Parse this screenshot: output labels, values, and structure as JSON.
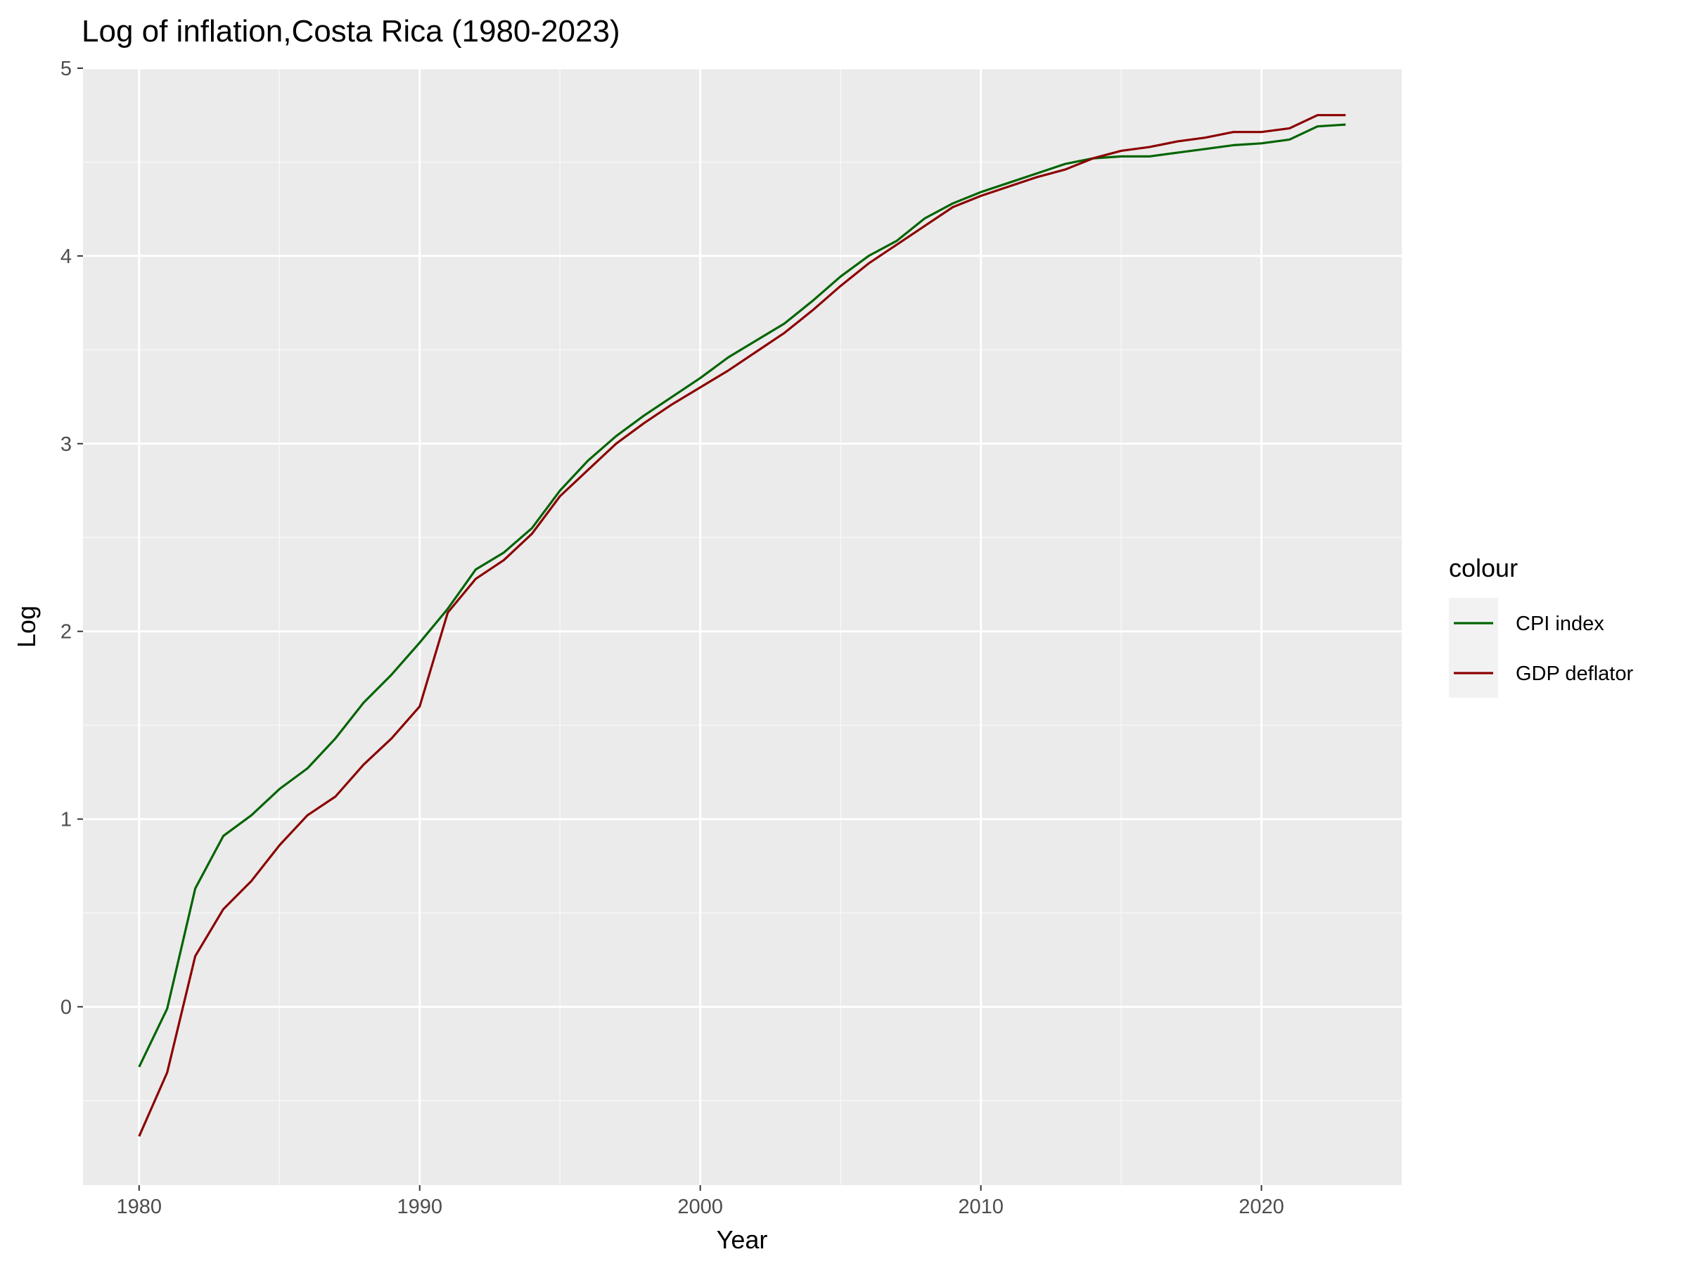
{
  "chart_data": {
    "type": "line",
    "title": "Log of inflation,Costa Rica (1980-2023)",
    "xlabel": "Year",
    "ylabel": "Log",
    "xlim": [
      1978,
      2025
    ],
    "ylim": [
      -0.95,
      5.0
    ],
    "x_ticks": [
      1980,
      1990,
      2000,
      2010,
      2020
    ],
    "y_ticks": [
      0,
      1,
      2,
      3,
      4,
      5
    ],
    "grid": true,
    "legend": {
      "title": "colour",
      "position": "right"
    },
    "x": [
      1980,
      1981,
      1982,
      1983,
      1984,
      1985,
      1986,
      1987,
      1988,
      1989,
      1990,
      1991,
      1992,
      1993,
      1994,
      1995,
      1996,
      1997,
      1998,
      1999,
      2000,
      2001,
      2002,
      2003,
      2004,
      2005,
      2006,
      2007,
      2008,
      2009,
      2010,
      2011,
      2012,
      2013,
      2014,
      2015,
      2016,
      2017,
      2018,
      2019,
      2020,
      2021,
      2022,
      2023
    ],
    "series": [
      {
        "name": "CPI index",
        "color": "#006400",
        "values": [
          -0.32,
          -0.01,
          0.63,
          0.91,
          1.02,
          1.16,
          1.27,
          1.43,
          1.62,
          1.77,
          1.94,
          2.12,
          2.33,
          2.42,
          2.55,
          2.75,
          2.91,
          3.04,
          3.15,
          3.25,
          3.35,
          3.46,
          3.55,
          3.64,
          3.76,
          3.89,
          4.0,
          4.08,
          4.2,
          4.28,
          4.34,
          4.39,
          4.44,
          4.49,
          4.52,
          4.53,
          4.53,
          4.55,
          4.57,
          4.59,
          4.6,
          4.62,
          4.69,
          4.7
        ]
      },
      {
        "name": "GDP deflator",
        "color": "#8b0000",
        "values": [
          -0.69,
          -0.35,
          0.27,
          0.52,
          0.67,
          0.86,
          1.02,
          1.12,
          1.29,
          1.43,
          1.6,
          2.1,
          2.28,
          2.38,
          2.52,
          2.72,
          2.86,
          3.0,
          3.11,
          3.21,
          3.3,
          3.39,
          3.49,
          3.59,
          3.71,
          3.84,
          3.96,
          4.06,
          4.16,
          4.26,
          4.32,
          4.37,
          4.42,
          4.46,
          4.52,
          4.56,
          4.58,
          4.61,
          4.63,
          4.66,
          4.66,
          4.68,
          4.75,
          4.75
        ]
      }
    ]
  }
}
